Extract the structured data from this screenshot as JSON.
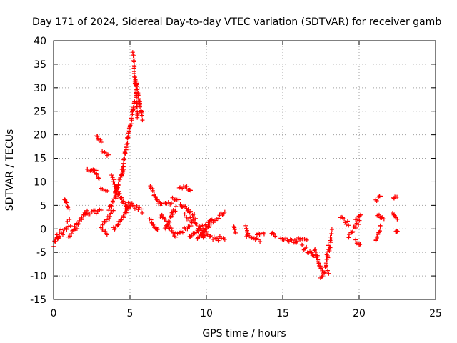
{
  "chart_data": {
    "type": "scatter",
    "title": "Day 171 of 2024, Sidereal Day-to-day VTEC variation (SDTVAR) for receiver gamb",
    "xlabel": "GPS time / hours",
    "ylabel": "SDTVAR / TECUs",
    "xlim": [
      0,
      25
    ],
    "ylim": [
      -15,
      40
    ],
    "xticks": [
      0,
      5,
      10,
      15,
      20,
      25
    ],
    "yticks": [
      -15,
      -10,
      -5,
      0,
      5,
      10,
      15,
      20,
      25,
      30,
      35,
      40
    ],
    "grid": true,
    "marker": "+",
    "color": "#ff0000",
    "series": [
      {
        "name": "SDTVAR",
        "segments": [
          {
            "x0": 0.0,
            "x1": 0.4,
            "y0": -3.5,
            "y1": -1.0,
            "spread": 1.2
          },
          {
            "x0": 0.2,
            "x1": 1.1,
            "y0": -2.0,
            "y1": 1.5,
            "spread": 2.2
          },
          {
            "x0": 0.7,
            "x1": 1.0,
            "y0": 6.5,
            "y1": 4.5,
            "spread": 0.6
          },
          {
            "x0": 1.0,
            "x1": 1.6,
            "y0": -1.5,
            "y1": 0.5,
            "spread": 1.0
          },
          {
            "x0": 1.4,
            "x1": 2.2,
            "y0": 0.5,
            "y1": 3.5,
            "spread": 1.2
          },
          {
            "x0": 2.1,
            "x1": 3.1,
            "y0": 3.0,
            "y1": 4.0,
            "spread": 0.8
          },
          {
            "x0": 2.2,
            "x1": 2.8,
            "y0": 12.5,
            "y1": 12.5,
            "spread": 0.4
          },
          {
            "x0": 2.7,
            "x1": 3.0,
            "y0": 12.0,
            "y1": 10.5,
            "spread": 0.5
          },
          {
            "x0": 2.8,
            "x1": 3.1,
            "y0": 20.0,
            "y1": 18.5,
            "spread": 0.5
          },
          {
            "x0": 3.2,
            "x1": 3.6,
            "y0": 16.5,
            "y1": 15.5,
            "spread": 0.5
          },
          {
            "x0": 3.1,
            "x1": 3.5,
            "y0": 8.5,
            "y1": 8.0,
            "spread": 0.5
          },
          {
            "x0": 3.1,
            "x1": 3.5,
            "y0": 0.5,
            "y1": -1.2,
            "spread": 0.6
          },
          {
            "x0": 3.2,
            "x1": 3.9,
            "y0": 1.0,
            "y1": 3.5,
            "spread": 0.8
          },
          {
            "x0": 3.6,
            "x1": 4.2,
            "y0": 4.0,
            "y1": 7.5,
            "spread": 1.0
          },
          {
            "x0": 3.8,
            "x1": 4.8,
            "y0": 11.0,
            "y1": 4.0,
            "spread": 1.2
          },
          {
            "x0": 4.0,
            "x1": 4.6,
            "y0": 7.5,
            "y1": 13.0,
            "spread": 1.0
          },
          {
            "x0": 4.5,
            "x1": 5.3,
            "y0": 13.0,
            "y1": 27.0,
            "spread": 1.0
          },
          {
            "x0": 5.2,
            "x1": 5.5,
            "y0": 37.5,
            "y1": 24.0,
            "spread": 1.0
          },
          {
            "x0": 5.4,
            "x1": 5.8,
            "y0": 31.0,
            "y1": 23.5,
            "spread": 0.8
          },
          {
            "x0": 3.9,
            "x1": 5.1,
            "y0": -0.2,
            "y1": 5.0,
            "spread": 1.0
          },
          {
            "x0": 4.7,
            "x1": 5.8,
            "y0": 5.5,
            "y1": 3.8,
            "spread": 1.2
          },
          {
            "x0": 6.3,
            "x1": 6.9,
            "y0": 9.0,
            "y1": 5.5,
            "spread": 1.0
          },
          {
            "x0": 6.3,
            "x1": 6.8,
            "y0": 2.0,
            "y1": -0.5,
            "spread": 0.8
          },
          {
            "x0": 6.9,
            "x1": 7.7,
            "y0": 5.8,
            "y1": 5.5,
            "spread": 1.0
          },
          {
            "x0": 7.0,
            "x1": 8.0,
            "y0": 3.0,
            "y1": -1.5,
            "spread": 1.0
          },
          {
            "x0": 7.3,
            "x1": 8.0,
            "y0": 0.0,
            "y1": 4.5,
            "spread": 1.0
          },
          {
            "x0": 7.8,
            "x1": 8.2,
            "y0": 6.5,
            "y1": 6.0,
            "spread": 0.6
          },
          {
            "x0": 8.2,
            "x1": 9.0,
            "y0": 9.0,
            "y1": 8.5,
            "spread": 0.8
          },
          {
            "x0": 8.3,
            "x1": 9.3,
            "y0": 5.5,
            "y1": 2.5,
            "spread": 1.0
          },
          {
            "x0": 8.0,
            "x1": 9.0,
            "y0": -1.0,
            "y1": 0.5,
            "spread": 1.0
          },
          {
            "x0": 8.6,
            "x1": 10.0,
            "y0": 3.0,
            "y1": -1.0,
            "spread": 1.0
          },
          {
            "x0": 8.9,
            "x1": 11.2,
            "y0": -1.5,
            "y1": 3.5,
            "spread": 1.0
          },
          {
            "x0": 9.7,
            "x1": 11.2,
            "y0": -1.5,
            "y1": -2.2,
            "spread": 1.0
          },
          {
            "x0": 9.4,
            "x1": 10.3,
            "y0": -2.2,
            "y1": 1.0,
            "spread": 0.8
          },
          {
            "x0": 11.8,
            "x1": 11.9,
            "y0": 0.5,
            "y1": -0.8,
            "spread": 0.4
          },
          {
            "x0": 12.6,
            "x1": 12.7,
            "y0": 0.5,
            "y1": -1.0,
            "spread": 0.4
          },
          {
            "x0": 13.3,
            "x1": 13.8,
            "y0": -1.2,
            "y1": -0.8,
            "spread": 0.6
          },
          {
            "x0": 12.6,
            "x1": 13.5,
            "y0": -1.5,
            "y1": -2.5,
            "spread": 0.8
          },
          {
            "x0": 14.3,
            "x1": 14.5,
            "y0": -0.8,
            "y1": -1.5,
            "spread": 0.4
          },
          {
            "x0": 14.9,
            "x1": 15.9,
            "y0": -2.0,
            "y1": -2.8,
            "spread": 0.6
          },
          {
            "x0": 15.8,
            "x1": 16.6,
            "y0": -2.5,
            "y1": -2.0,
            "spread": 1.0
          },
          {
            "x0": 16.2,
            "x1": 17.2,
            "y0": -3.5,
            "y1": -6.0,
            "spread": 1.2
          },
          {
            "x0": 17.1,
            "x1": 17.6,
            "y0": -4.5,
            "y1": -9.5,
            "spread": 1.2
          },
          {
            "x0": 17.5,
            "x1": 18.0,
            "y0": -10.0,
            "y1": -9.0,
            "spread": 1.0
          },
          {
            "x0": 17.8,
            "x1": 18.2,
            "y0": -8.0,
            "y1": -1.0,
            "spread": 2.0
          },
          {
            "x0": 18.8,
            "x1": 19.3,
            "y0": 2.5,
            "y1": 1.0,
            "spread": 1.0
          },
          {
            "x0": 19.3,
            "x1": 20.0,
            "y0": -1.5,
            "y1": 1.5,
            "spread": 1.0
          },
          {
            "x0": 19.8,
            "x1": 20.1,
            "y0": -2.5,
            "y1": -3.5,
            "spread": 0.6
          },
          {
            "x0": 19.8,
            "x1": 20.1,
            "y0": 2.0,
            "y1": 3.0,
            "spread": 0.6
          },
          {
            "x0": 21.1,
            "x1": 21.4,
            "y0": -2.5,
            "y1": 0.5,
            "spread": 0.6
          },
          {
            "x0": 21.1,
            "x1": 21.4,
            "y0": 6.0,
            "y1": 7.0,
            "spread": 0.6
          },
          {
            "x0": 21.2,
            "x1": 21.6,
            "y0": 3.0,
            "y1": 2.0,
            "spread": 0.5
          },
          {
            "x0": 22.2,
            "x1": 22.5,
            "y0": 6.5,
            "y1": 6.8,
            "spread": 0.4
          },
          {
            "x0": 22.2,
            "x1": 22.5,
            "y0": 3.5,
            "y1": 2.0,
            "spread": 0.6
          },
          {
            "x0": 22.4,
            "x1": 22.5,
            "y0": -0.5,
            "y1": -0.5,
            "spread": 0.2
          }
        ]
      }
    ]
  }
}
